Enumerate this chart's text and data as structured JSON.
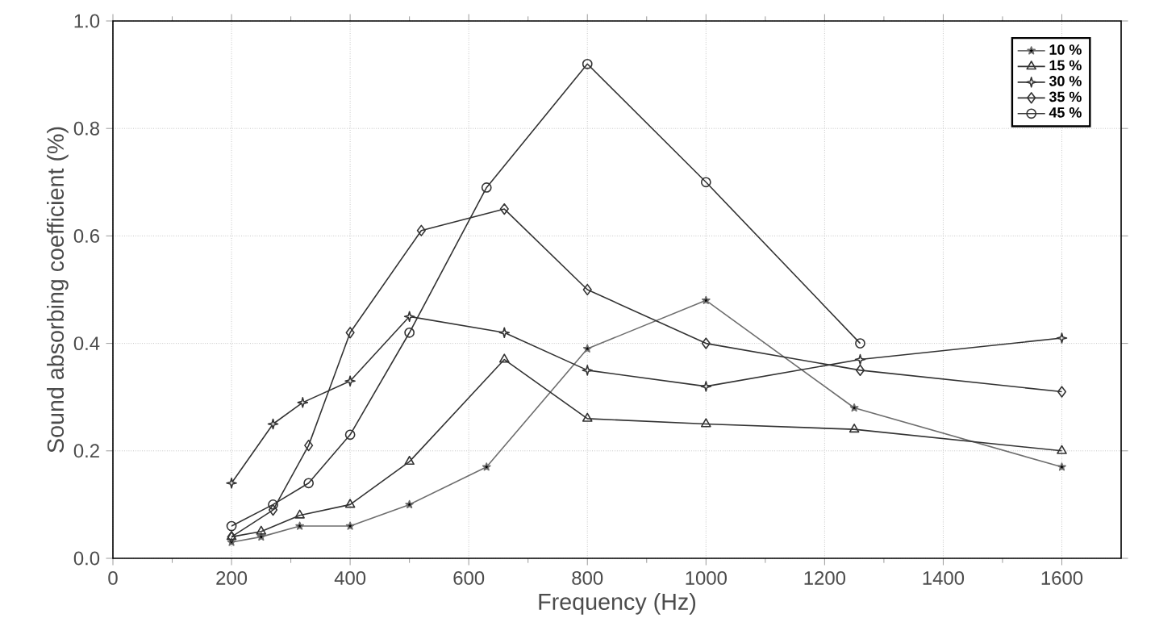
{
  "chart_data": {
    "type": "line",
    "xlabel": "Frequency (Hz)",
    "ylabel": "Sound absorbing coefficient (%)",
    "xlim": [
      0,
      1700
    ],
    "ylim": [
      0,
      1.0
    ],
    "xticks": [
      0,
      200,
      400,
      600,
      800,
      1000,
      1200,
      1400,
      1600
    ],
    "yticks": [
      {
        "value": 0,
        "label": "0.0"
      },
      {
        "value": 0.2,
        "label": "0.2"
      },
      {
        "value": 0.4,
        "label": "0.4"
      },
      {
        "value": 0.6,
        "label": "0.6"
      },
      {
        "value": 0.8,
        "label": "0.8"
      },
      {
        "value": 1.0,
        "label": "1.0"
      }
    ],
    "grid": true,
    "legend": "top right",
    "line_style": "solid",
    "series": [
      {
        "name": "10 %",
        "color": "#6e6e6e",
        "marker": "star",
        "x": [
          200,
          250,
          315,
          400,
          500,
          630,
          800,
          1000,
          1250,
          1600
        ],
        "values": [
          0.03,
          0.04,
          0.06,
          0.06,
          0.1,
          0.17,
          0.39,
          0.48,
          0.28,
          0.17
        ]
      },
      {
        "name": "15 %",
        "color": "#333333",
        "marker": "triangle",
        "x": [
          200,
          250,
          315,
          400,
          500,
          660,
          800,
          1000,
          1250,
          1600
        ],
        "values": [
          0.04,
          0.05,
          0.08,
          0.1,
          0.18,
          0.37,
          0.26,
          0.25,
          0.24,
          0.2
        ]
      },
      {
        "name": "30 %",
        "color": "#333333",
        "marker": "cross",
        "x": [
          200,
          270,
          320,
          400,
          500,
          660,
          800,
          1000,
          1260,
          1600
        ],
        "values": [
          0.14,
          0.25,
          0.29,
          0.33,
          0.45,
          0.42,
          0.35,
          0.32,
          0.37,
          0.41
        ]
      },
      {
        "name": "35 %",
        "color": "#333333",
        "marker": "diamond",
        "x": [
          200,
          270,
          330,
          400,
          520,
          660,
          800,
          1000,
          1260,
          1600
        ],
        "values": [
          0.04,
          0.09,
          0.21,
          0.42,
          0.61,
          0.65,
          0.5,
          0.4,
          0.35,
          0.31
        ]
      },
      {
        "name": "45 %",
        "color": "#333333",
        "marker": "circle",
        "x": [
          200,
          270,
          330,
          400,
          500,
          630,
          800,
          1000,
          1260
        ],
        "values": [
          0.06,
          0.1,
          0.14,
          0.23,
          0.42,
          0.69,
          0.92,
          0.7,
          0.4
        ]
      }
    ]
  }
}
